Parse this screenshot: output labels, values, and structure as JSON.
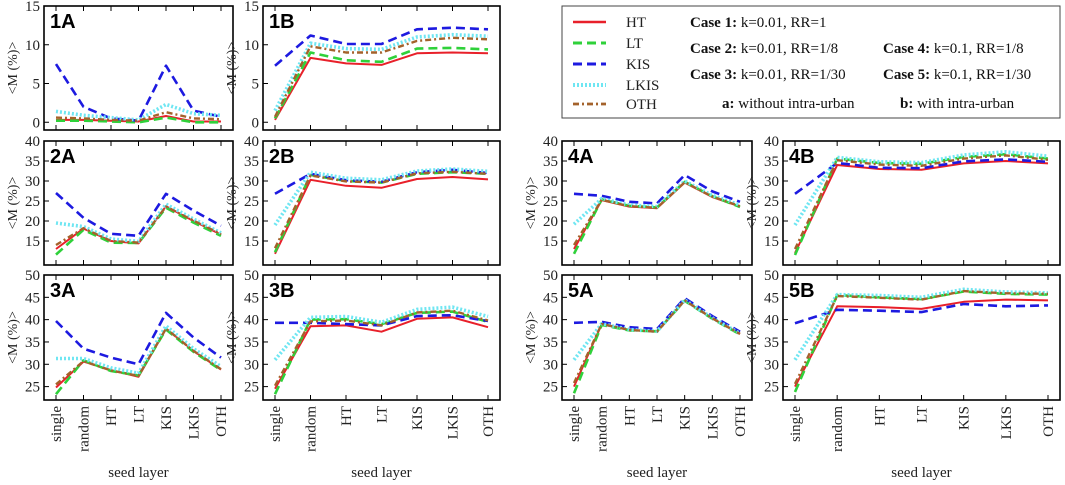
{
  "series_style": [
    {
      "name": "HT",
      "color": "#e8202a",
      "dash": "solid"
    },
    {
      "name": "LT",
      "color": "#2fd13a",
      "dash": "dashed"
    },
    {
      "name": "KIS",
      "color": "#1d1ae0",
      "dash": "dashed"
    },
    {
      "name": "LKIS",
      "color": "#6fe6f2",
      "dash": "dotted"
    },
    {
      "name": "OTH",
      "color": "#a4622b",
      "dash": "dashdot"
    }
  ],
  "x_categories": [
    "single",
    "random",
    "HT",
    "LT",
    "KIS",
    "LKIS",
    "OTH"
  ],
  "ylabel": "<M (%)>",
  "xlabel": "seed layer",
  "legend": {
    "series_labels": [
      "HT",
      "LT",
      "KIS",
      "LKIS",
      "OTH"
    ],
    "cases": [
      {
        "label": "Case 1:",
        "text": "k=0.01, RR=1"
      },
      {
        "label": "Case 2:",
        "text": "k=0.01, RR=1/8"
      },
      {
        "label": "Case 3:",
        "text": "k=0.01, RR=1/30"
      },
      {
        "label": "Case 4:",
        "text": "k=0.1, RR=1/8"
      },
      {
        "label": "Case 5:",
        "text": "k=0.1, RR=1/30"
      }
    ],
    "notes": [
      {
        "label": "a:",
        "text": "without intra-urban"
      },
      {
        "label": "b:",
        "text": "with intra-urban"
      }
    ]
  },
  "chart_data": [
    {
      "id": "1A",
      "type": "line",
      "title": "1A",
      "ylim": [
        -1,
        15
      ],
      "yticks": [
        0,
        5,
        10,
        15
      ],
      "show_xticks": false,
      "series": [
        {
          "name": "HT",
          "values": [
            0.3,
            0.3,
            0.2,
            0.1,
            0.8,
            0.1,
            0.1
          ]
        },
        {
          "name": "LT",
          "values": [
            0.2,
            0.2,
            0.1,
            0.0,
            0.6,
            0.0,
            0.0
          ]
        },
        {
          "name": "KIS",
          "values": [
            7.5,
            2.0,
            0.5,
            0.2,
            7.3,
            1.5,
            0.7
          ]
        },
        {
          "name": "LKIS",
          "values": [
            1.4,
            0.9,
            0.6,
            0.3,
            2.3,
            1.1,
            0.9
          ]
        },
        {
          "name": "OTH",
          "values": [
            0.6,
            0.5,
            0.3,
            0.2,
            1.3,
            0.5,
            0.4
          ]
        }
      ]
    },
    {
      "id": "1B",
      "type": "line",
      "title": "1B",
      "ylim": [
        -1,
        15
      ],
      "yticks": [
        0,
        5,
        10,
        15
      ],
      "show_xticks": false,
      "series": [
        {
          "name": "HT",
          "values": [
            0.3,
            8.3,
            7.6,
            7.4,
            8.9,
            9.0,
            8.9
          ]
        },
        {
          "name": "LT",
          "values": [
            0.5,
            9.0,
            8.0,
            7.8,
            9.5,
            9.6,
            9.4
          ]
        },
        {
          "name": "KIS",
          "values": [
            7.3,
            11.2,
            10.1,
            10.1,
            12.0,
            12.2,
            12.0
          ]
        },
        {
          "name": "LKIS",
          "values": [
            1.5,
            10.2,
            9.5,
            9.4,
            11.0,
            11.3,
            11.1
          ]
        },
        {
          "name": "OTH",
          "values": [
            0.7,
            9.8,
            9.0,
            9.0,
            10.5,
            10.9,
            10.7
          ]
        }
      ]
    },
    {
      "id": "2A",
      "type": "line",
      "title": "2A",
      "ylim": [
        9,
        40
      ],
      "yticks": [
        15,
        20,
        25,
        30,
        35,
        40
      ],
      "show_xticks": false,
      "series": [
        {
          "name": "HT",
          "values": [
            13.0,
            18.1,
            15.0,
            14.4,
            23.7,
            20.0,
            16.6
          ]
        },
        {
          "name": "LT",
          "values": [
            11.6,
            17.8,
            14.6,
            14.5,
            23.3,
            19.6,
            16.3
          ]
        },
        {
          "name": "KIS",
          "values": [
            27.0,
            20.8,
            16.8,
            16.3,
            26.8,
            22.6,
            18.8
          ]
        },
        {
          "name": "LKIS",
          "values": [
            19.5,
            18.6,
            15.5,
            14.9,
            24.2,
            20.5,
            17.0
          ]
        },
        {
          "name": "OTH",
          "values": [
            14.0,
            18.2,
            15.0,
            14.6,
            23.6,
            20.1,
            16.7
          ]
        }
      ]
    },
    {
      "id": "2B",
      "type": "line",
      "title": "2B",
      "ylim": [
        9,
        40
      ],
      "yticks": [
        15,
        20,
        25,
        30,
        35,
        40
      ],
      "show_xticks": false,
      "series": [
        {
          "name": "HT",
          "values": [
            11.8,
            30.3,
            28.8,
            28.3,
            30.5,
            31.0,
            30.4
          ]
        },
        {
          "name": "LT",
          "values": [
            12.2,
            31.5,
            30.0,
            29.6,
            31.8,
            32.2,
            31.8
          ]
        },
        {
          "name": "KIS",
          "values": [
            26.8,
            31.8,
            30.2,
            29.8,
            32.2,
            32.8,
            32.0
          ]
        },
        {
          "name": "LKIS",
          "values": [
            19.0,
            32.2,
            30.7,
            30.3,
            32.5,
            33.0,
            32.4
          ]
        },
        {
          "name": "OTH",
          "values": [
            13.2,
            31.4,
            29.9,
            29.6,
            31.9,
            32.3,
            31.8
          ]
        }
      ]
    },
    {
      "id": "3A",
      "type": "line",
      "title": "3A",
      "ylim": [
        22,
        50
      ],
      "yticks": [
        25,
        30,
        35,
        40,
        45,
        50
      ],
      "show_xticks": true,
      "series": [
        {
          "name": "HT",
          "values": [
            24.8,
            30.6,
            28.7,
            27.2,
            38.0,
            33.0,
            28.8
          ]
        },
        {
          "name": "LT",
          "values": [
            23.3,
            30.9,
            28.5,
            27.5,
            37.8,
            32.8,
            28.7
          ]
        },
        {
          "name": "KIS",
          "values": [
            39.7,
            33.5,
            31.5,
            30.0,
            41.5,
            36.0,
            31.5
          ]
        },
        {
          "name": "LKIS",
          "values": [
            31.3,
            31.3,
            29.2,
            28.0,
            38.6,
            33.5,
            29.5
          ]
        },
        {
          "name": "OTH",
          "values": [
            25.5,
            30.7,
            28.6,
            27.4,
            38.0,
            33.0,
            28.9
          ]
        }
      ]
    },
    {
      "id": "3B",
      "type": "line",
      "title": "3B",
      "ylim": [
        22,
        50
      ],
      "yticks": [
        25,
        30,
        35,
        40,
        45,
        50
      ],
      "show_xticks": true,
      "series": [
        {
          "name": "HT",
          "values": [
            24.5,
            38.5,
            38.7,
            37.3,
            40.2,
            40.5,
            38.3
          ]
        },
        {
          "name": "LT",
          "values": [
            23.3,
            40.0,
            40.1,
            39.0,
            41.5,
            41.8,
            39.5
          ]
        },
        {
          "name": "KIS",
          "values": [
            39.3,
            39.3,
            39.0,
            38.7,
            40.8,
            41.0,
            39.7
          ]
        },
        {
          "name": "LKIS",
          "values": [
            31.0,
            40.5,
            40.7,
            39.4,
            42.3,
            42.8,
            40.7
          ]
        },
        {
          "name": "OTH",
          "values": [
            25.2,
            39.6,
            39.8,
            38.7,
            41.6,
            42.0,
            39.8
          ]
        }
      ]
    },
    {
      "id": "4A",
      "type": "line",
      "title": "4A",
      "ylim": [
        9,
        40
      ],
      "yticks": [
        15,
        20,
        25,
        30,
        35,
        40
      ],
      "show_xticks": false,
      "series": [
        {
          "name": "HT",
          "values": [
            13.0,
            25.2,
            23.6,
            23.2,
            29.6,
            26.0,
            23.6
          ]
        },
        {
          "name": "LT",
          "values": [
            11.8,
            25.4,
            23.8,
            23.4,
            29.8,
            26.2,
            23.5
          ]
        },
        {
          "name": "KIS",
          "values": [
            26.8,
            26.3,
            24.8,
            24.4,
            31.5,
            27.4,
            24.8
          ]
        },
        {
          "name": "LKIS",
          "values": [
            19.2,
            25.6,
            24.0,
            23.6,
            30.0,
            26.4,
            24.0
          ]
        },
        {
          "name": "OTH",
          "values": [
            14.0,
            25.3,
            23.7,
            23.3,
            29.7,
            26.1,
            23.7
          ]
        }
      ]
    },
    {
      "id": "4B",
      "type": "line",
      "title": "4B",
      "ylim": [
        9,
        40
      ],
      "yticks": [
        15,
        20,
        25,
        30,
        35,
        40
      ],
      "show_xticks": false,
      "series": [
        {
          "name": "HT",
          "values": [
            12.0,
            34.0,
            33.0,
            32.8,
            34.4,
            35.0,
            34.4
          ]
        },
        {
          "name": "LT",
          "values": [
            11.5,
            35.6,
            34.5,
            34.3,
            36.0,
            36.7,
            35.6
          ]
        },
        {
          "name": "KIS",
          "values": [
            26.8,
            34.5,
            33.3,
            33.2,
            34.9,
            35.4,
            34.8
          ]
        },
        {
          "name": "LKIS",
          "values": [
            19.0,
            35.9,
            34.8,
            34.6,
            36.5,
            37.3,
            36.2
          ]
        },
        {
          "name": "OTH",
          "values": [
            13.0,
            35.2,
            34.1,
            33.8,
            35.6,
            36.4,
            35.3
          ]
        }
      ]
    },
    {
      "id": "5A",
      "type": "line",
      "title": "5A",
      "ylim": [
        22,
        50
      ],
      "yticks": [
        25,
        30,
        35,
        40,
        45,
        50
      ],
      "show_xticks": true,
      "series": [
        {
          "name": "HT",
          "values": [
            25.0,
            39.0,
            37.7,
            37.3,
            44.3,
            40.3,
            36.8
          ]
        },
        {
          "name": "LT",
          "values": [
            23.5,
            38.8,
            37.6,
            37.4,
            44.2,
            40.2,
            36.7
          ]
        },
        {
          "name": "KIS",
          "values": [
            39.3,
            39.5,
            38.3,
            37.9,
            44.8,
            40.8,
            37.3
          ]
        },
        {
          "name": "LKIS",
          "values": [
            31.0,
            39.1,
            37.8,
            37.4,
            44.4,
            40.4,
            36.9
          ]
        },
        {
          "name": "OTH",
          "values": [
            25.8,
            39.0,
            37.7,
            37.3,
            44.3,
            40.3,
            36.8
          ]
        }
      ]
    },
    {
      "id": "5B",
      "type": "line",
      "title": "5B",
      "ylim": [
        22,
        50
      ],
      "yticks": [
        25,
        30,
        35,
        40,
        45,
        50
      ],
      "show_xticks": true,
      "series": [
        {
          "name": "HT",
          "values": [
            25.0,
            43.0,
            42.8,
            42.4,
            44.0,
            44.5,
            44.3
          ]
        },
        {
          "name": "LT",
          "values": [
            23.8,
            45.5,
            45.0,
            44.6,
            46.3,
            45.8,
            45.6
          ]
        },
        {
          "name": "KIS",
          "values": [
            39.2,
            42.2,
            42.0,
            41.7,
            43.5,
            43.0,
            43.2
          ]
        },
        {
          "name": "LKIS",
          "values": [
            31.0,
            45.6,
            45.4,
            45.0,
            46.8,
            46.2,
            46.0
          ]
        },
        {
          "name": "OTH",
          "values": [
            25.6,
            45.3,
            44.9,
            44.5,
            46.4,
            45.9,
            45.8
          ]
        }
      ]
    }
  ]
}
